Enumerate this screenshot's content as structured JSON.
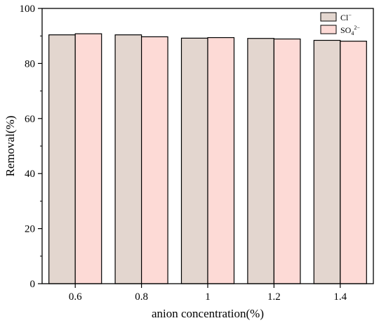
{
  "chart_data": {
    "type": "bar",
    "title": "",
    "xlabel": "anion concentration(%)",
    "ylabel": "Removal(%)",
    "categories": [
      "0.6",
      "0.8",
      "1",
      "1.2",
      "1.4"
    ],
    "ylim": [
      0,
      100
    ],
    "yticks": [
      "0",
      "20",
      "40",
      "60",
      "80",
      "100"
    ],
    "grid": false,
    "legend_position": "top-right",
    "series": [
      {
        "name": "Cl",
        "name_sup": "−",
        "color": "#e3d6cf",
        "values": [
          90.4,
          90.4,
          89.2,
          89.1,
          88.4
        ]
      },
      {
        "name": "SO",
        "name_sub": "4",
        "name_sup": "2−",
        "color": "#fddad6",
        "values": [
          90.8,
          89.7,
          89.4,
          88.9,
          88.1
        ]
      }
    ]
  }
}
